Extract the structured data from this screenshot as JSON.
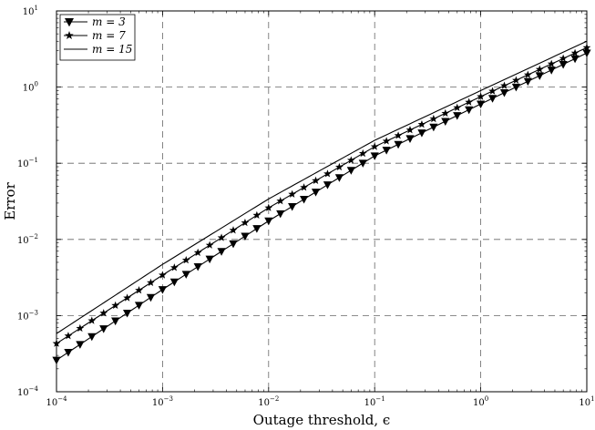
{
  "chart_data": {
    "type": "line",
    "xscale": "log",
    "yscale": "log",
    "xlabel": "Outage threshold, ϵ",
    "ylabel": "Error",
    "xlim": [
      0.0001,
      10
    ],
    "ylim": [
      0.0001,
      10
    ],
    "xticks": [
      {
        "value": 0.0001,
        "base": "10",
        "exp": "−4"
      },
      {
        "value": 0.001,
        "base": "10",
        "exp": "−3"
      },
      {
        "value": 0.01,
        "base": "10",
        "exp": "−2"
      },
      {
        "value": 0.1,
        "base": "10",
        "exp": "−1"
      },
      {
        "value": 1,
        "base": "10",
        "exp": "0"
      },
      {
        "value": 10,
        "base": "10",
        "exp": "1"
      }
    ],
    "yticks": [
      {
        "value": 0.0001,
        "base": "10",
        "exp": "−4"
      },
      {
        "value": 0.001,
        "base": "10",
        "exp": "−3"
      },
      {
        "value": 0.01,
        "base": "10",
        "exp": "−2"
      },
      {
        "value": 0.1,
        "base": "10",
        "exp": "−1"
      },
      {
        "value": 1,
        "base": "10",
        "exp": "0"
      },
      {
        "value": 10,
        "base": "10",
        "exp": "1"
      }
    ],
    "grid": true,
    "legend_position": "top-left",
    "series": [
      {
        "name": "m = 3",
        "marker": "triangle-down",
        "x": [
          0.0001,
          0.001,
          0.01,
          0.1,
          1,
          10
        ],
        "y": [
          0.00026,
          0.0022,
          0.0175,
          0.125,
          0.6,
          2.8
        ]
      },
      {
        "name": "m = 7",
        "marker": "star",
        "x": [
          0.0001,
          0.001,
          0.01,
          0.1,
          1,
          10
        ],
        "y": [
          0.00043,
          0.0034,
          0.026,
          0.165,
          0.75,
          3.3
        ]
      },
      {
        "name": "m = 15",
        "marker": "none",
        "x": [
          0.0001,
          0.001,
          0.01,
          0.1,
          1,
          10
        ],
        "y": [
          0.00058,
          0.0047,
          0.034,
          0.2,
          0.9,
          4.0
        ]
      }
    ]
  }
}
